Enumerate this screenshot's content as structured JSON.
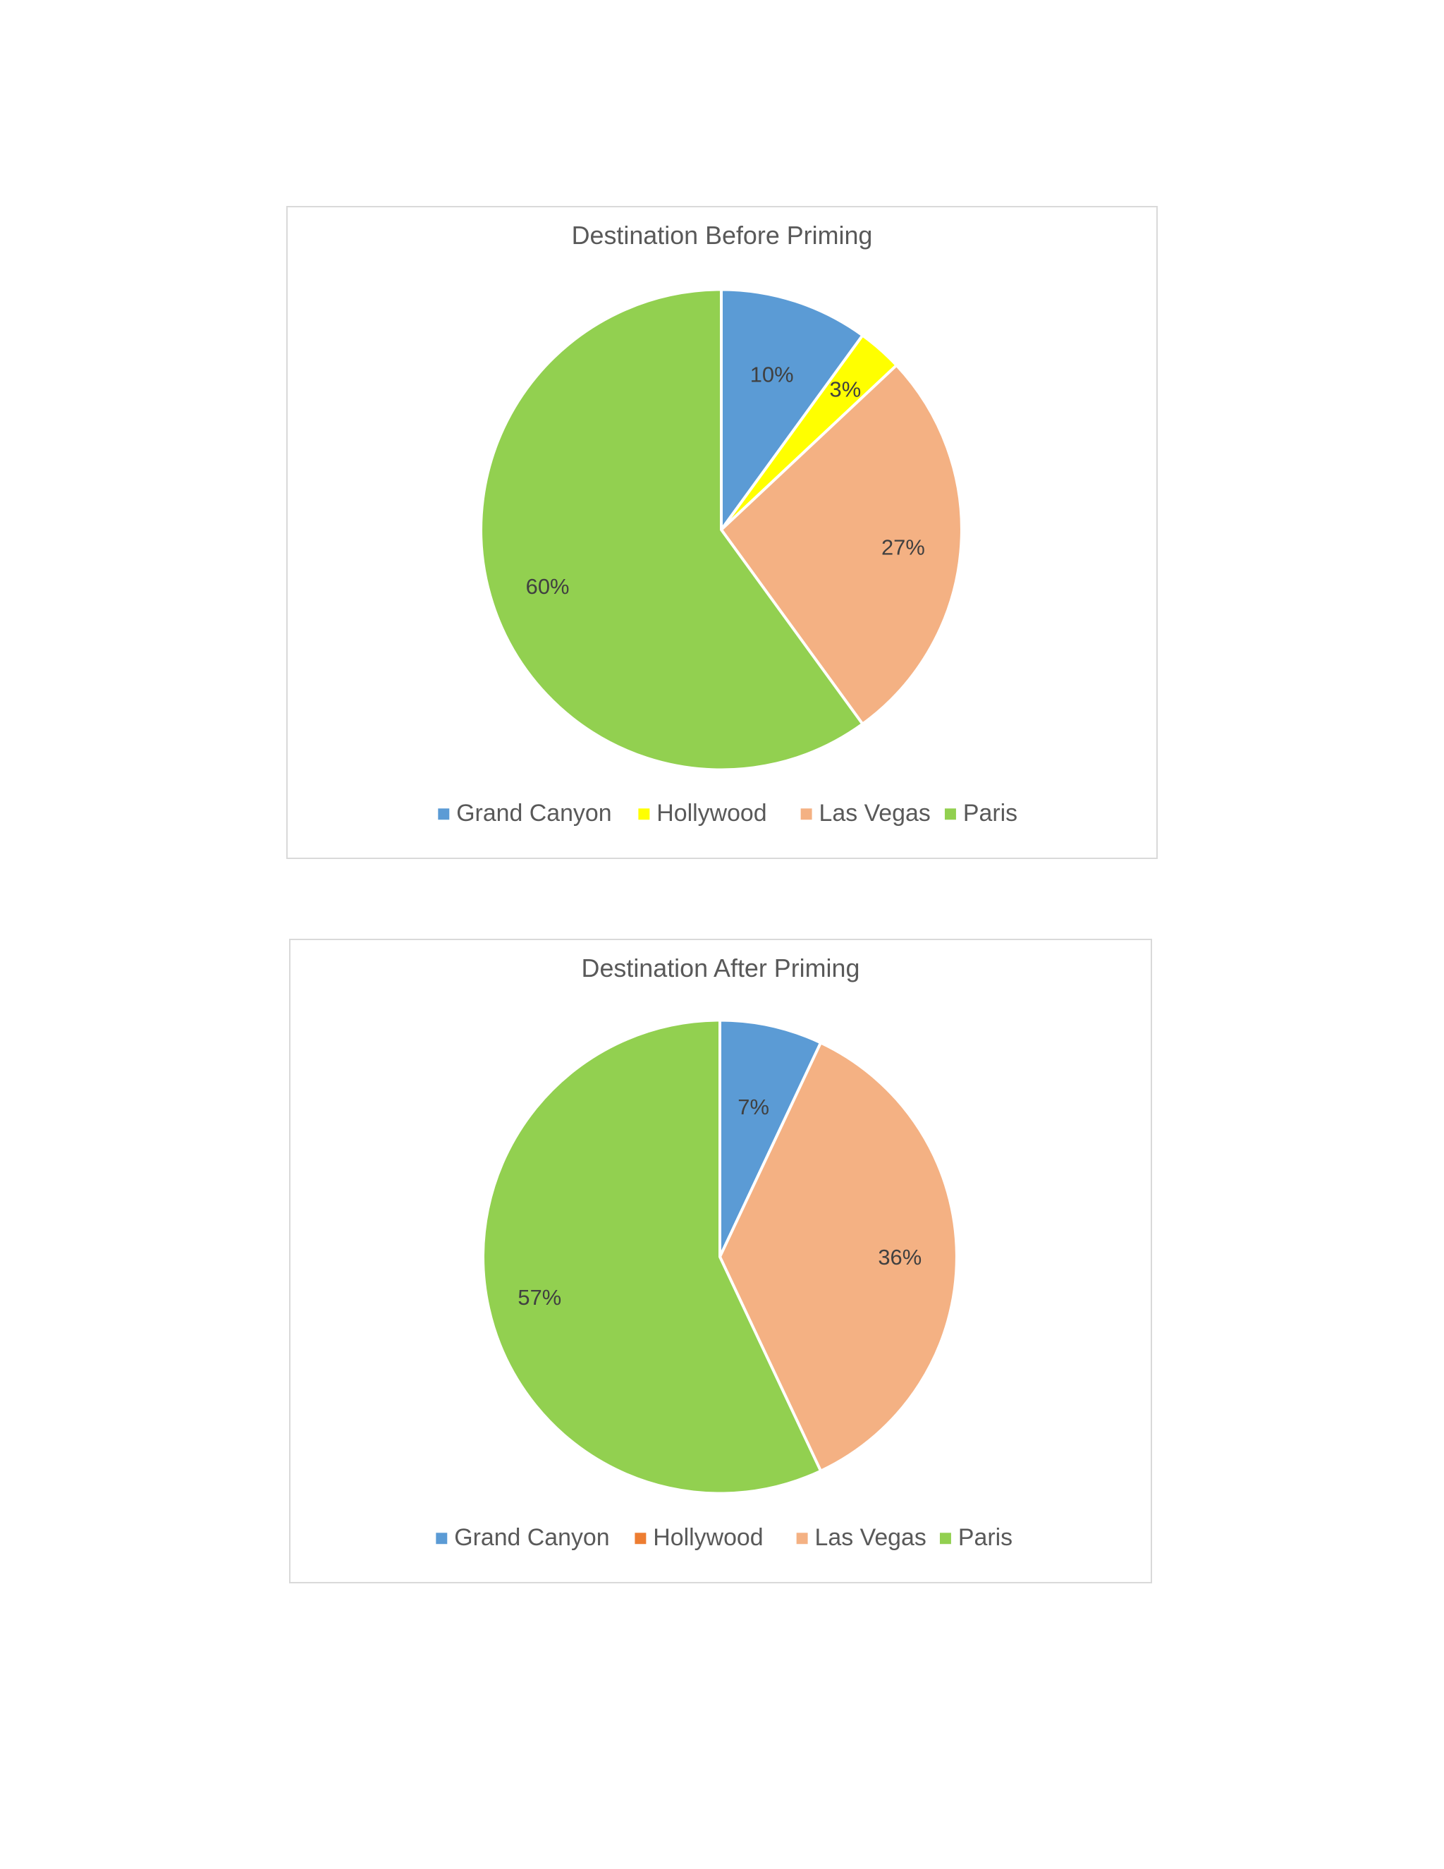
{
  "chart_data": [
    {
      "type": "pie",
      "title": "Destination Before Priming",
      "categories": [
        "Grand Canyon",
        "Hollywood",
        "Las Vegas",
        "Paris"
      ],
      "values": [
        10,
        3,
        27,
        60
      ],
      "data_labels": [
        "10%",
        "3%",
        "27%",
        "60%"
      ],
      "colors": [
        "#5b9bd5",
        "#ffff00",
        "#f4b183",
        "#92d050"
      ],
      "legend_position": "bottom"
    },
    {
      "type": "pie",
      "title": "Destination After Priming",
      "categories": [
        "Grand Canyon",
        "Hollywood",
        "Las Vegas",
        "Paris"
      ],
      "values": [
        7,
        0,
        36,
        57
      ],
      "data_labels": [
        "7%",
        "",
        "36%",
        "57%"
      ],
      "colors": [
        "#5b9bd5",
        "#ed7d31",
        "#f4b183",
        "#92d050"
      ],
      "legend_position": "bottom"
    }
  ]
}
